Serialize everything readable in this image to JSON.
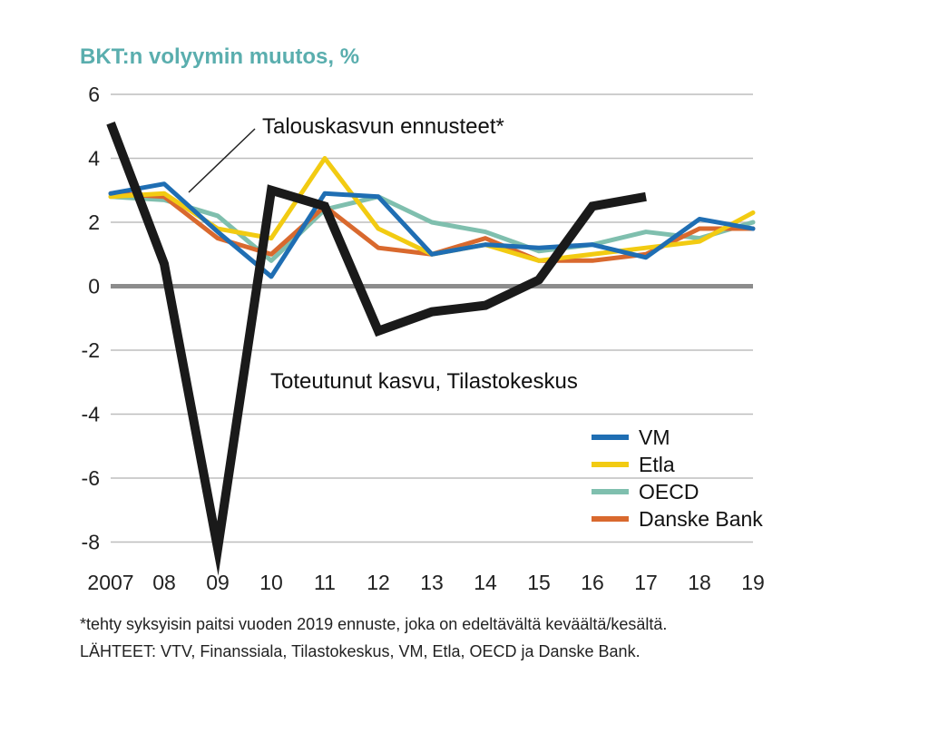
{
  "chart_data": {
    "type": "line",
    "title": "BKT:n volyymin muutos, %",
    "title_color": "#5aaeae",
    "x": [
      "2007",
      "08",
      "09",
      "10",
      "11",
      "12",
      "13",
      "14",
      "15",
      "16",
      "17",
      "18",
      "19"
    ],
    "ylim": [
      -8,
      6
    ],
    "yticks": [
      6,
      4,
      2,
      0,
      -2,
      -4,
      -6,
      -8
    ],
    "grid": true,
    "legend_position": "bottom-right",
    "series": [
      {
        "name": "OECD",
        "color": "#7fbfae",
        "values": [
          2.8,
          2.7,
          2.2,
          0.8,
          2.4,
          2.8,
          2.0,
          1.7,
          1.1,
          1.3,
          1.7,
          1.5,
          2.0
        ]
      },
      {
        "name": "Danske Bank",
        "color": "#d9692e",
        "values": [
          2.9,
          2.8,
          1.5,
          1.0,
          2.5,
          1.2,
          1.0,
          1.5,
          0.8,
          0.8,
          1.0,
          1.8,
          1.8
        ]
      },
      {
        "name": "Etla",
        "color": "#f2cb12",
        "values": [
          2.8,
          2.9,
          1.8,
          1.5,
          4.0,
          1.8,
          1.0,
          1.3,
          0.8,
          1.0,
          1.2,
          1.4,
          2.3
        ]
      },
      {
        "name": "VM",
        "color": "#1f6eb3",
        "values": [
          2.9,
          3.2,
          1.7,
          0.3,
          2.9,
          2.8,
          1.0,
          1.3,
          1.2,
          1.3,
          0.9,
          2.1,
          1.8
        ]
      },
      {
        "name": "",
        "color": "#1a1a1a",
        "values": [
          5.1,
          0.7,
          -8.2,
          3.0,
          2.5,
          -1.4,
          -0.8,
          -0.6,
          0.2,
          2.5,
          2.8,
          null,
          null
        ]
      }
    ],
    "legend": [
      "VM",
      "Etla",
      "OECD",
      "Danske Bank"
    ],
    "annotations": {
      "forecasts": "Talouskasvun ennusteet*",
      "actual": "Toteutunut kasvu, Tilastokeskus"
    }
  },
  "footnotes": {
    "line1": "*tehty syksyisin paitsi vuoden 2019 ennuste, joka on edeltävältä keväältä/kesältä.",
    "line2": "LÄHTEET: VTV, Finanssiala, Tilastokeskus, VM, Etla, OECD ja Danske Bank."
  }
}
